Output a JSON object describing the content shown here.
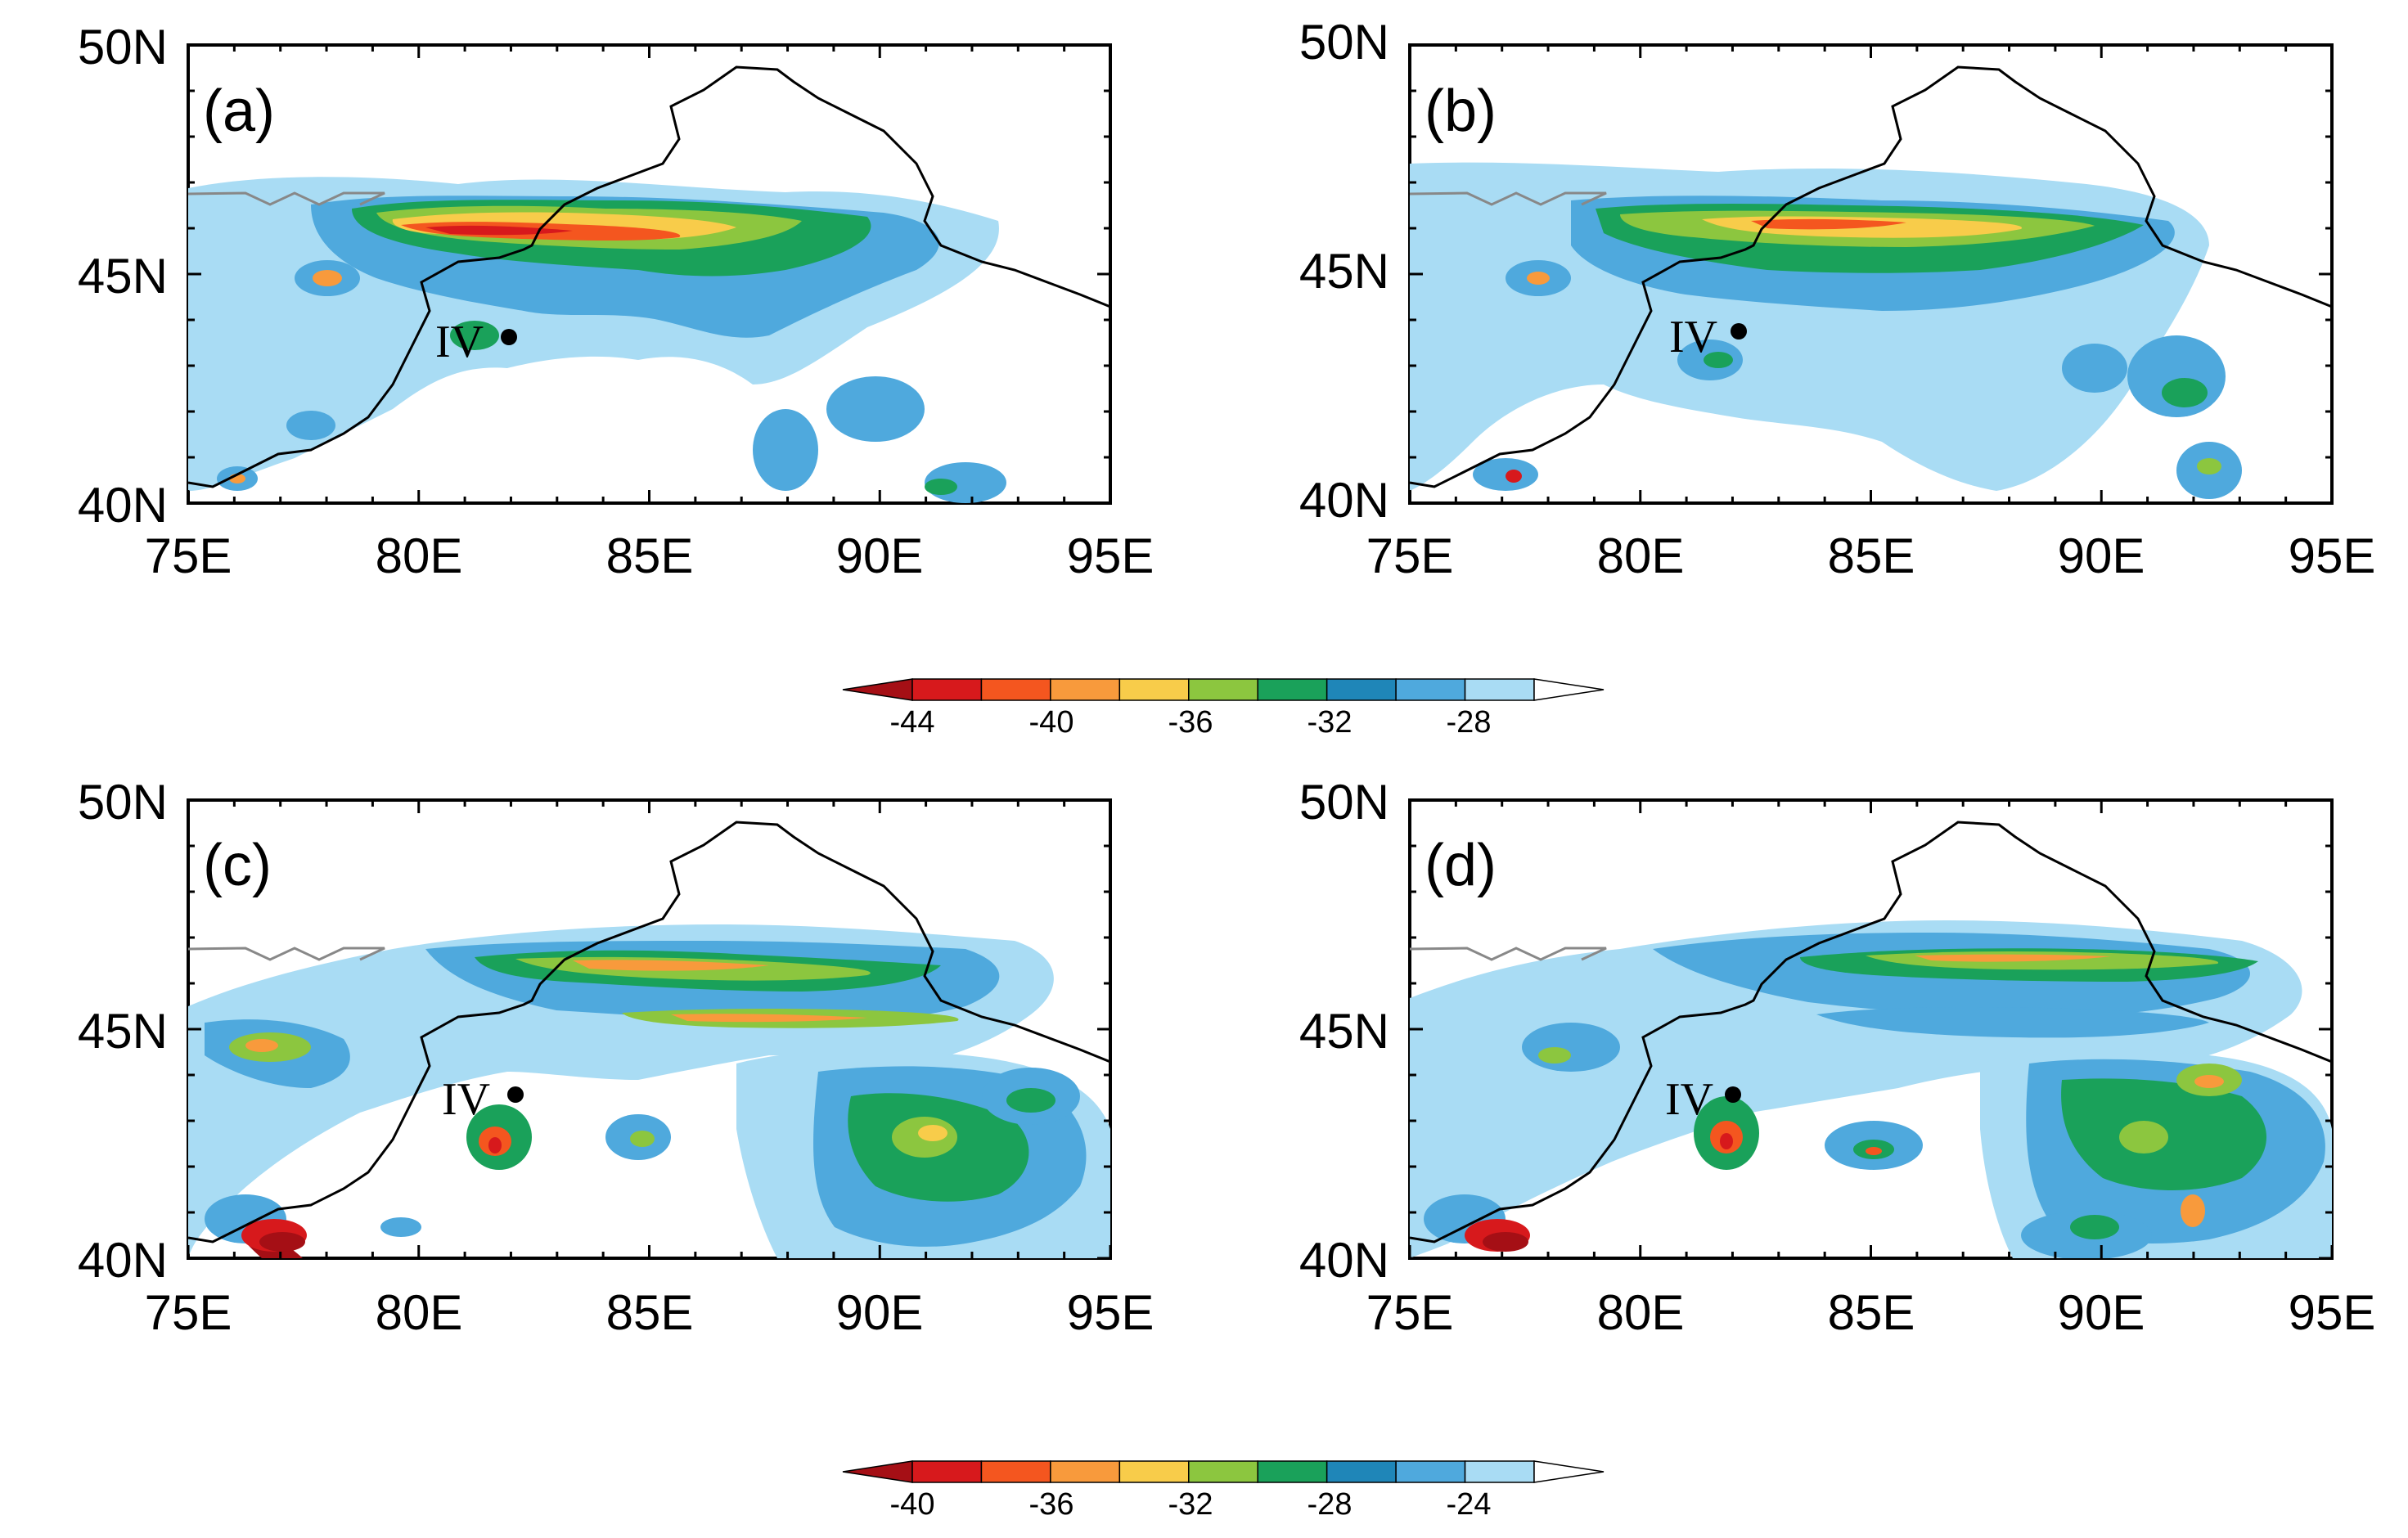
{
  "figure": {
    "panels": [
      {
        "label": "(a)",
        "station": "IV",
        "colorbar": "top"
      },
      {
        "label": "(b)",
        "station": "IV",
        "colorbar": "top"
      },
      {
        "label": "(c)",
        "station": "IV",
        "colorbar": "bottom"
      },
      {
        "label": "(d)",
        "station": "IV",
        "colorbar": "bottom"
      }
    ],
    "axes": {
      "x_ticks": [
        "75E",
        "80E",
        "85E",
        "90E",
        "95E"
      ],
      "y_ticks": [
        "50N",
        "45N",
        "40N"
      ],
      "lon_range": [
        75,
        95
      ],
      "lat_range": [
        40,
        50
      ]
    },
    "station_location": {
      "name": "IV",
      "lon": 82.0,
      "lat": 43.6
    }
  },
  "colorbars": {
    "top": {
      "labels": [
        "-44",
        "-40",
        "-36",
        "-32",
        "-28"
      ],
      "colors": [
        "#a50f15",
        "#d7191c",
        "#f4561f",
        "#f89a3c",
        "#f8cc4a",
        "#8cc63f",
        "#1aa15a",
        "#1f86b8",
        "#4fa9dd",
        "#a9dcf4",
        "#ffffff"
      ]
    },
    "bottom": {
      "labels": [
        "-40",
        "-36",
        "-32",
        "-28",
        "-24"
      ],
      "colors": [
        "#a50f15",
        "#d7191c",
        "#f4561f",
        "#f89a3c",
        "#f8cc4a",
        "#8cc63f",
        "#1aa15a",
        "#1f86b8",
        "#4fa9dd",
        "#a9dcf4",
        "#ffffff"
      ]
    }
  },
  "chart_data": {
    "type": "heatmap",
    "x_ticks": [
      "75E",
      "80E",
      "85E",
      "90E",
      "95E"
    ],
    "y_ticks": [
      "50N",
      "45N",
      "40N"
    ],
    "panels": [
      "(a)",
      "(b)",
      "(c)",
      "(d)"
    ],
    "colorbar_top_ticks": [
      -44,
      -40,
      -36,
      -32,
      -28
    ],
    "colorbar_bottom_ticks": [
      -40,
      -36,
      -32,
      -28,
      -24
    ]
  }
}
